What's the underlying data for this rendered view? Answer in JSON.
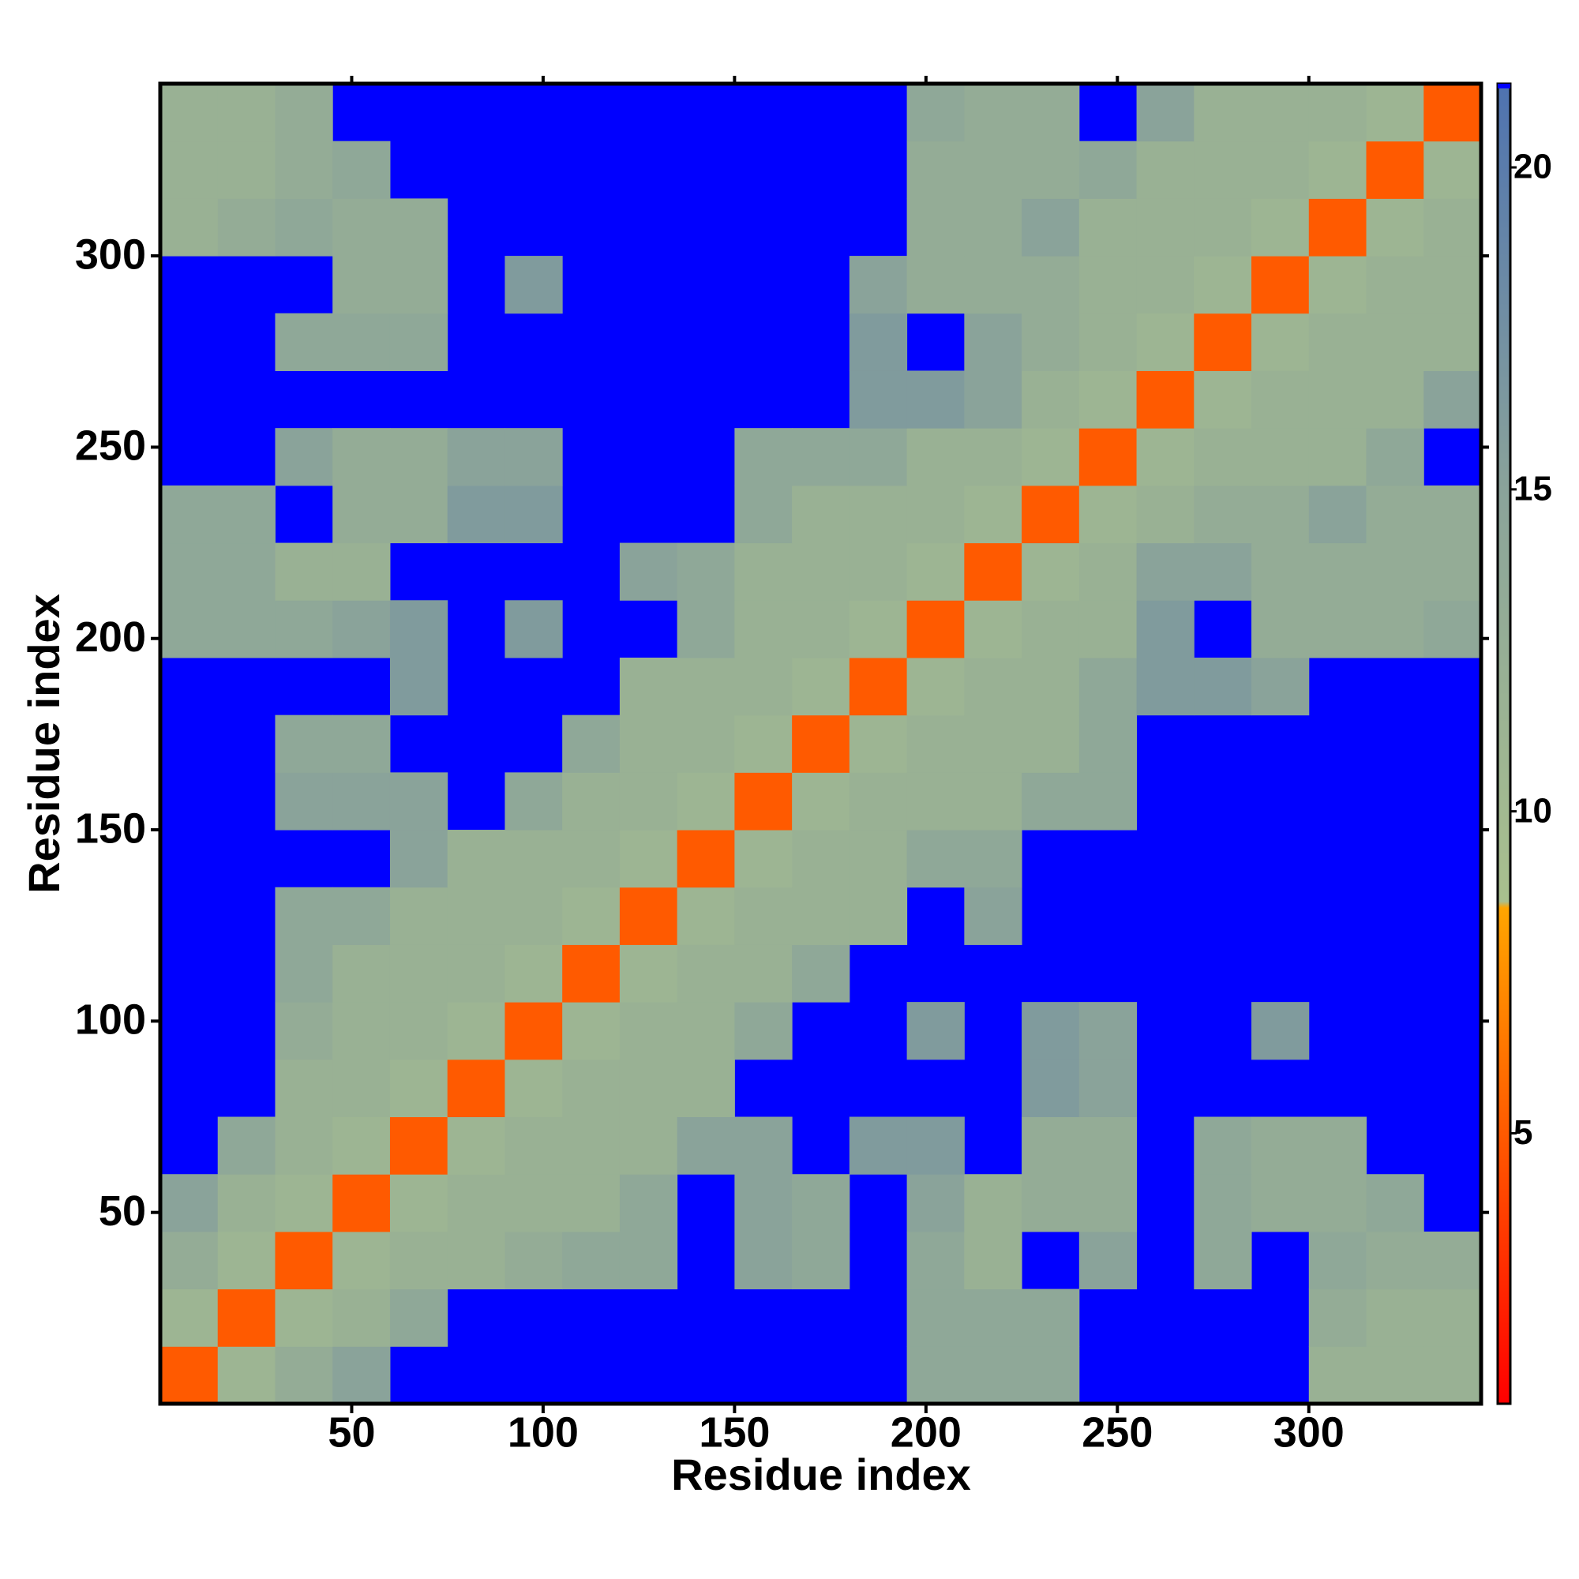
{
  "chart_data": {
    "type": "heatmap",
    "xlabel": "Residue index",
    "ylabel": "Residue index",
    "xlim": [
      0,
      345
    ],
    "ylim": [
      0,
      345
    ],
    "xticks": [
      50,
      100,
      150,
      200,
      250,
      300
    ],
    "yticks": [
      50,
      100,
      150,
      200,
      250,
      300
    ],
    "x_bins": [
      0,
      15,
      30,
      45,
      60,
      75,
      90,
      105,
      120,
      135,
      150,
      165,
      180,
      195,
      210,
      225,
      240,
      255,
      270,
      285,
      300,
      315,
      330,
      345
    ],
    "y_bins": [
      0,
      15,
      30,
      45,
      60,
      75,
      90,
      105,
      120,
      135,
      150,
      165,
      180,
      195,
      210,
      225,
      240,
      255,
      270,
      285,
      300,
      315,
      330,
      345
    ],
    "background_color": "#0000ff",
    "colorscale": [
      [
        0.8,
        "#ff0000"
      ],
      [
        8.5,
        "#ffa500"
      ],
      [
        8.6,
        "#a9c08e"
      ],
      [
        15,
        "#8aa39a"
      ],
      [
        21.3,
        "#4e72b0"
      ]
    ],
    "colorbar_ticks": [
      5,
      10,
      15,
      20
    ],
    "z": [
      [
        5,
        11,
        13,
        15,
        null,
        null,
        null,
        null,
        null,
        null,
        null,
        null,
        null,
        14,
        14,
        14,
        null,
        null,
        null,
        null,
        12,
        12,
        12
      ],
      [
        11,
        5,
        11,
        12,
        14,
        null,
        null,
        null,
        null,
        null,
        null,
        null,
        null,
        14,
        14,
        14,
        null,
        null,
        null,
        null,
        13,
        12,
        12
      ],
      [
        13,
        11,
        5,
        11,
        12,
        12,
        13,
        14,
        14,
        null,
        15,
        14,
        null,
        14,
        12,
        null,
        15,
        null,
        14,
        null,
        14,
        13,
        13
      ],
      [
        15,
        12,
        11,
        5,
        11,
        12,
        12,
        12,
        14,
        null,
        15,
        14,
        null,
        15,
        12,
        13,
        13,
        null,
        14,
        13,
        13,
        14,
        null
      ],
      [
        null,
        14,
        12,
        11,
        5,
        11,
        12,
        12,
        12,
        15,
        15,
        null,
        16,
        16,
        null,
        13,
        13,
        null,
        14,
        13,
        13,
        null,
        null
      ],
      [
        null,
        null,
        12,
        12,
        11,
        5,
        11,
        12,
        12,
        12,
        null,
        null,
        null,
        null,
        null,
        16,
        15,
        null,
        null,
        null,
        null,
        null,
        null
      ],
      [
        null,
        null,
        13,
        12,
        12,
        11,
        5,
        11,
        12,
        12,
        14,
        null,
        null,
        16,
        null,
        16,
        15,
        null,
        null,
        16,
        null,
        null,
        null
      ],
      [
        null,
        null,
        14,
        12,
        12,
        12,
        11,
        5,
        11,
        12,
        12,
        14,
        null,
        null,
        null,
        null,
        null,
        null,
        null,
        null,
        null,
        null,
        null
      ],
      [
        null,
        null,
        14,
        14,
        12,
        12,
        12,
        11,
        5,
        11,
        12,
        12,
        12,
        null,
        15,
        null,
        null,
        null,
        null,
        null,
        null,
        null,
        null
      ],
      [
        null,
        null,
        null,
        null,
        15,
        12,
        12,
        12,
        11,
        5,
        11,
        12,
        12,
        14,
        14,
        null,
        null,
        null,
        null,
        null,
        null,
        null,
        null
      ],
      [
        null,
        null,
        15,
        15,
        15,
        null,
        14,
        12,
        12,
        11,
        5,
        11,
        12,
        12,
        12,
        14,
        14,
        null,
        null,
        null,
        null,
        null,
        null
      ],
      [
        null,
        null,
        14,
        14,
        null,
        null,
        null,
        14,
        12,
        12,
        11,
        5,
        11,
        12,
        12,
        12,
        14,
        null,
        null,
        null,
        null,
        null,
        null
      ],
      [
        null,
        null,
        null,
        null,
        16,
        null,
        null,
        null,
        12,
        12,
        12,
        11,
        5,
        11,
        12,
        12,
        14,
        16,
        16,
        15,
        null,
        null,
        null
      ],
      [
        14,
        14,
        14,
        15,
        16,
        null,
        16,
        null,
        null,
        14,
        12,
        12,
        11,
        5,
        11,
        12,
        12,
        16,
        null,
        13,
        13,
        13,
        14
      ],
      [
        14,
        14,
        12,
        12,
        null,
        null,
        null,
        null,
        15,
        14,
        12,
        12,
        12,
        11,
        5,
        11,
        12,
        15,
        15,
        13,
        13,
        13,
        13
      ],
      [
        14,
        14,
        null,
        13,
        13,
        16,
        16,
        null,
        null,
        null,
        14,
        12,
        12,
        12,
        11,
        5,
        11,
        12,
        13,
        13,
        15,
        13,
        13
      ],
      [
        null,
        null,
        15,
        13,
        13,
        15,
        15,
        null,
        null,
        null,
        14,
        14,
        14,
        12,
        12,
        11,
        5,
        11,
        12,
        12,
        12,
        14,
        null
      ],
      [
        null,
        null,
        null,
        null,
        null,
        null,
        null,
        null,
        null,
        null,
        null,
        null,
        16,
        16,
        15,
        12,
        11,
        5,
        11,
        12,
        12,
        12,
        15
      ],
      [
        null,
        null,
        14,
        14,
        14,
        null,
        null,
        null,
        null,
        null,
        null,
        null,
        16,
        null,
        15,
        13,
        12,
        11,
        5,
        11,
        12,
        12,
        12
      ],
      [
        null,
        null,
        null,
        13,
        13,
        null,
        16,
        null,
        null,
        null,
        null,
        null,
        15,
        13,
        13,
        13,
        12,
        12,
        11,
        5,
        11,
        12,
        12
      ],
      [
        12,
        13,
        14,
        13,
        13,
        null,
        null,
        null,
        null,
        null,
        null,
        null,
        null,
        13,
        13,
        15,
        12,
        12,
        12,
        11,
        5,
        11,
        12
      ],
      [
        12,
        12,
        13,
        14,
        null,
        null,
        null,
        null,
        null,
        null,
        null,
        null,
        null,
        13,
        13,
        13,
        14,
        12,
        12,
        12,
        11,
        5,
        11
      ],
      [
        12,
        12,
        13,
        null,
        null,
        null,
        null,
        null,
        null,
        null,
        null,
        null,
        null,
        14,
        13,
        13,
        null,
        15,
        12,
        12,
        12,
        11,
        5
      ]
    ]
  }
}
